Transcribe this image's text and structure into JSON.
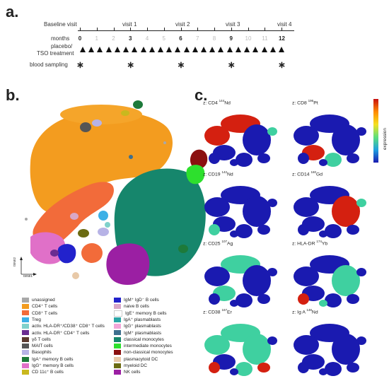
{
  "panels": {
    "a": "a.",
    "b": "b.",
    "c": "c."
  },
  "timeline": {
    "visits": [
      {
        "label": "Baseline visit",
        "month": 0
      },
      {
        "label": "visit 1",
        "month": 3
      },
      {
        "label": "visit 2",
        "month": 6
      },
      {
        "label": "visit 3",
        "month": 9
      },
      {
        "label": "visit 4",
        "month": 12
      }
    ],
    "months_label": "months",
    "month_ticks": [
      "0",
      "1",
      "2",
      "3",
      "4",
      "5",
      "6",
      "7",
      "8",
      "9",
      "10",
      "11",
      "12"
    ],
    "bold_months": [
      "0",
      "3",
      "6",
      "9",
      "12"
    ],
    "treatment_label_line1": "placebo/",
    "treatment_label_line2": "TSO treatment",
    "blood_label": "blood sampling",
    "blood_sampling_months": [
      0,
      3,
      6,
      9,
      12
    ],
    "marker_symbol": "∗"
  },
  "tsne": {
    "axis_x": "tSNE1",
    "axis_y": "tSNE2"
  },
  "legend": {
    "left": [
      {
        "label": "unassigned",
        "color": "#a8a8a8"
      },
      {
        "label": "CD4⁺ T cells",
        "color": "#f39c1f"
      },
      {
        "label": "CD8⁺ T cells",
        "color": "#f26b3a"
      },
      {
        "label": "Treg",
        "color": "#3cb0e6"
      },
      {
        "label": "activ. HLA-DR⁺/CD38⁺ CD8⁺ T cells",
        "color": "#7fd1cb"
      },
      {
        "label": "activ. HLA-DR⁺ CD4⁺ T cells",
        "color": "#6a2c91"
      },
      {
        "label": "γδ T cells",
        "color": "#5b3a2e"
      },
      {
        "label": "MAIT cells",
        "color": "#555555"
      },
      {
        "label": "Basophils",
        "color": "#b7b3e6"
      },
      {
        "label": "IgA⁺ memory B cells",
        "color": "#1d7a3a"
      },
      {
        "label": "IgG⁺ memory B cells",
        "color": "#e070c8"
      },
      {
        "label": "CD 11c⁺ B cells",
        "color": "#c9b81e"
      }
    ],
    "right": [
      {
        "label": "IgM⁺ IgD⁻ B cells",
        "color": "#2222cc"
      },
      {
        "label": "naive B cells",
        "color": "#d9a7c7"
      },
      {
        "label": "IgE⁺ memory B cells",
        "color": "#ffffff"
      },
      {
        "label": "IgA⁺ plasmablasts",
        "color": "#2aa6a6"
      },
      {
        "label": "IgG⁺ plasmablasts",
        "color": "#f2a6d8"
      },
      {
        "label": "IgM⁺ plasmablasts",
        "color": "#3e6f8e"
      },
      {
        "label": "classical monocytes",
        "color": "#16866c"
      },
      {
        "label": "intermediate monocytes",
        "color": "#2de02d"
      },
      {
        "label": "non-classical monocytes",
        "color": "#8b1010"
      },
      {
        "label": "plasmacytoid DC",
        "color": "#e8c9a8"
      },
      {
        "label": "myeloid DC",
        "color": "#6b6b12"
      },
      {
        "label": "NK cells",
        "color": "#9b1fa3"
      }
    ]
  },
  "heatmaps": [
    {
      "prefix": "z: CD4 ",
      "iso": "144",
      "suffix": "Nd"
    },
    {
      "prefix": "z: CD8 ",
      "iso": "196",
      "suffix": "Pt"
    },
    {
      "prefix": "z: CD19 ",
      "iso": "142",
      "suffix": "Nd"
    },
    {
      "prefix": "z: CD14 ",
      "iso": "160",
      "suffix": "Gd"
    },
    {
      "prefix": "z: CD25 ",
      "iso": "107",
      "suffix": "Ag"
    },
    {
      "prefix": "z: HLA-DR ",
      "iso": "174",
      "suffix": "Yb"
    },
    {
      "prefix": "z: CD38 ",
      "iso": "167",
      "suffix": "Er"
    },
    {
      "prefix": "z: Ig A ",
      "iso": "148",
      "suffix": "Nd"
    }
  ],
  "colorbar_label": "expression",
  "colors": {
    "low": "#1a1ab0",
    "mid": "#3fd0a0",
    "high": "#d42010"
  }
}
